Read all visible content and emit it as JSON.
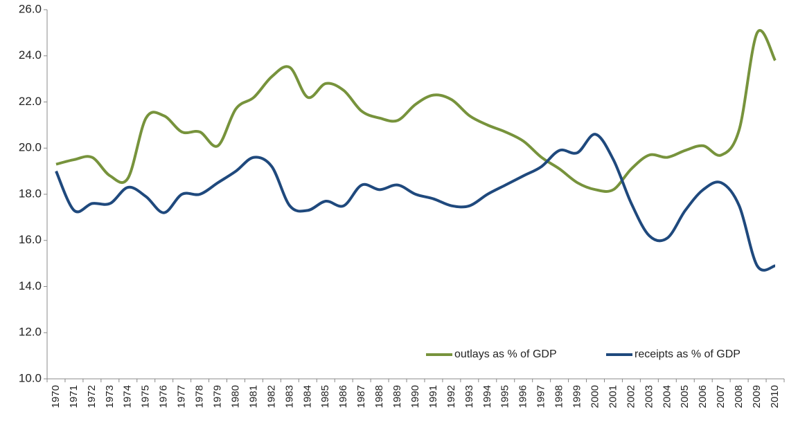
{
  "chart_data": {
    "type": "line",
    "categories": [
      "1970",
      "1971",
      "1972",
      "1973",
      "1974",
      "1975",
      "1976",
      "1977",
      "1978",
      "1979",
      "1980",
      "1981",
      "1982",
      "1983",
      "1984",
      "1985",
      "1986",
      "1987",
      "1988",
      "1989",
      "1990",
      "1991",
      "1992",
      "1993",
      "1994",
      "1995",
      "1996",
      "1997",
      "1998",
      "1999",
      "2000",
      "2001",
      "2002",
      "2003",
      "2004",
      "2005",
      "2006",
      "2007",
      "2008",
      "2009",
      "2010"
    ],
    "series": [
      {
        "name": "outlays as % of GDP",
        "color": "#77933c",
        "values": [
          19.3,
          19.5,
          19.6,
          18.8,
          18.7,
          21.3,
          21.4,
          20.7,
          20.7,
          20.1,
          21.7,
          22.2,
          23.1,
          23.5,
          22.2,
          22.8,
          22.5,
          21.6,
          21.3,
          21.2,
          21.9,
          22.3,
          22.1,
          21.4,
          21.0,
          20.7,
          20.3,
          19.6,
          19.1,
          18.5,
          18.2,
          18.2,
          19.1,
          19.7,
          19.6,
          19.9,
          20.1,
          19.7,
          20.8,
          25.0,
          23.8
        ]
      },
      {
        "name": "receipts as % of GDP",
        "color": "#1f497d",
        "values": [
          19.0,
          17.3,
          17.6,
          17.6,
          18.3,
          17.9,
          17.2,
          18.0,
          18.0,
          18.5,
          19.0,
          19.6,
          19.2,
          17.5,
          17.3,
          17.7,
          17.5,
          18.4,
          18.2,
          18.4,
          18.0,
          17.8,
          17.5,
          17.5,
          18.0,
          18.4,
          18.8,
          19.2,
          19.9,
          19.8,
          20.6,
          19.5,
          17.6,
          16.2,
          16.1,
          17.3,
          18.2,
          18.5,
          17.5,
          14.9,
          14.9
        ]
      }
    ],
    "ylim": [
      10,
      26
    ],
    "yticks": [
      {
        "value": 10,
        "label": "10.0"
      },
      {
        "value": 12,
        "label": "12.0"
      },
      {
        "value": 14,
        "label": "14.0"
      },
      {
        "value": 16,
        "label": "16.0"
      },
      {
        "value": 18,
        "label": "18.0"
      },
      {
        "value": 20,
        "label": "20.0"
      },
      {
        "value": 22,
        "label": "22.0"
      },
      {
        "value": 24,
        "label": "24.0"
      },
      {
        "value": 26,
        "label": "26.0"
      }
    ],
    "grid": false,
    "legend": "bottom-right"
  }
}
